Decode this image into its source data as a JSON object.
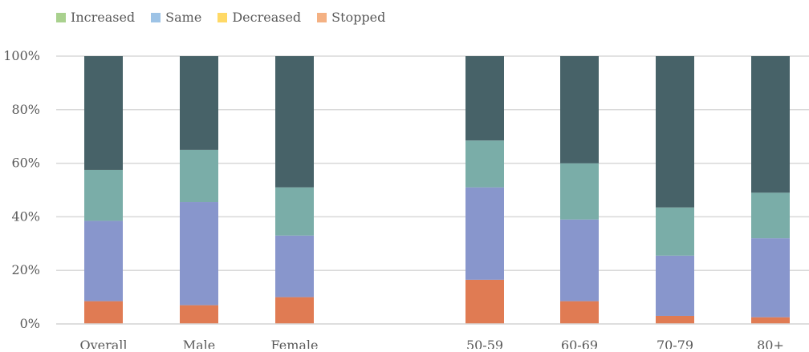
{
  "chart_data": {
    "type": "bar",
    "stacked": true,
    "categories": [
      "Overall",
      "Male",
      "Female",
      "",
      "50-59",
      "60-69",
      "70-79",
      "80+"
    ],
    "legend_entries": [
      {
        "label": "Increased",
        "color": "#a9d18e"
      },
      {
        "label": "Same",
        "color": "#9dc3e6"
      },
      {
        "label": "Decreased",
        "color": "#ffd966"
      },
      {
        "label": "Stopped",
        "color": "#f4b183"
      }
    ],
    "legend_placement": "top-left",
    "segment_colors": [
      "#e07b53",
      "#8896cc",
      "#7aada8",
      "#476268"
    ],
    "series": [
      {
        "values": [
          8.5,
          7,
          10,
          null,
          16.5,
          8.5,
          3,
          2.5
        ]
      },
      {
        "values": [
          30,
          38.5,
          23,
          null,
          34.5,
          30.5,
          22.5,
          29.5
        ]
      },
      {
        "values": [
          19,
          19.5,
          18,
          null,
          17.5,
          21,
          18,
          17
        ]
      },
      {
        "values": [
          42.5,
          35,
          49,
          null,
          31.5,
          40,
          56.5,
          51
        ]
      }
    ],
    "ylim": [
      0,
      100
    ],
    "yticks": [
      "0%",
      "20%",
      "40%",
      "60%",
      "80%",
      "100%"
    ],
    "ytick_values": [
      0,
      20,
      40,
      60,
      80,
      100
    ],
    "grid": true
  }
}
